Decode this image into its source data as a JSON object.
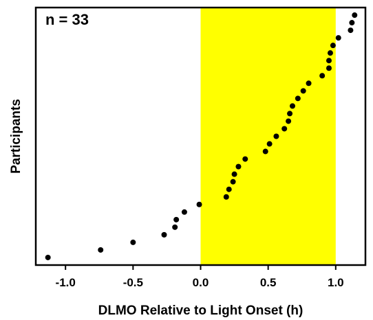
{
  "chart_data": {
    "type": "scatter",
    "title": "",
    "annotation": "n = 33",
    "xlabel": "DLMO Relative to Light Onset (h)",
    "ylabel": "Participants",
    "xlim": [
      -1.22,
      1.22
    ],
    "ylim": [
      0,
      34
    ],
    "xticks": [
      -1.0,
      -0.5,
      0.0,
      0.5,
      1.0
    ],
    "xtick_labels": [
      "-1.0",
      "-0.5",
      "0.0",
      "0.5",
      "1.0"
    ],
    "highlight_region": {
      "x": [
        0.0,
        1.0
      ],
      "color": "#ffff00"
    },
    "marker_color": "#000000",
    "points": [
      {
        "x": -1.13,
        "y": 1
      },
      {
        "x": -0.74,
        "y": 2
      },
      {
        "x": -0.5,
        "y": 3
      },
      {
        "x": -0.27,
        "y": 4
      },
      {
        "x": -0.19,
        "y": 5
      },
      {
        "x": -0.18,
        "y": 6
      },
      {
        "x": -0.12,
        "y": 7
      },
      {
        "x": -0.01,
        "y": 8
      },
      {
        "x": 0.19,
        "y": 9
      },
      {
        "x": 0.21,
        "y": 10
      },
      {
        "x": 0.24,
        "y": 11
      },
      {
        "x": 0.25,
        "y": 12
      },
      {
        "x": 0.28,
        "y": 13
      },
      {
        "x": 0.33,
        "y": 14
      },
      {
        "x": 0.48,
        "y": 15
      },
      {
        "x": 0.51,
        "y": 16
      },
      {
        "x": 0.56,
        "y": 17
      },
      {
        "x": 0.62,
        "y": 18
      },
      {
        "x": 0.65,
        "y": 19
      },
      {
        "x": 0.66,
        "y": 20
      },
      {
        "x": 0.68,
        "y": 21
      },
      {
        "x": 0.72,
        "y": 22
      },
      {
        "x": 0.76,
        "y": 23
      },
      {
        "x": 0.8,
        "y": 24
      },
      {
        "x": 0.9,
        "y": 25
      },
      {
        "x": 0.95,
        "y": 26
      },
      {
        "x": 0.95,
        "y": 27
      },
      {
        "x": 0.96,
        "y": 28
      },
      {
        "x": 0.98,
        "y": 29
      },
      {
        "x": 1.02,
        "y": 30
      },
      {
        "x": 1.11,
        "y": 31
      },
      {
        "x": 1.12,
        "y": 32
      },
      {
        "x": 1.14,
        "y": 33
      }
    ]
  }
}
